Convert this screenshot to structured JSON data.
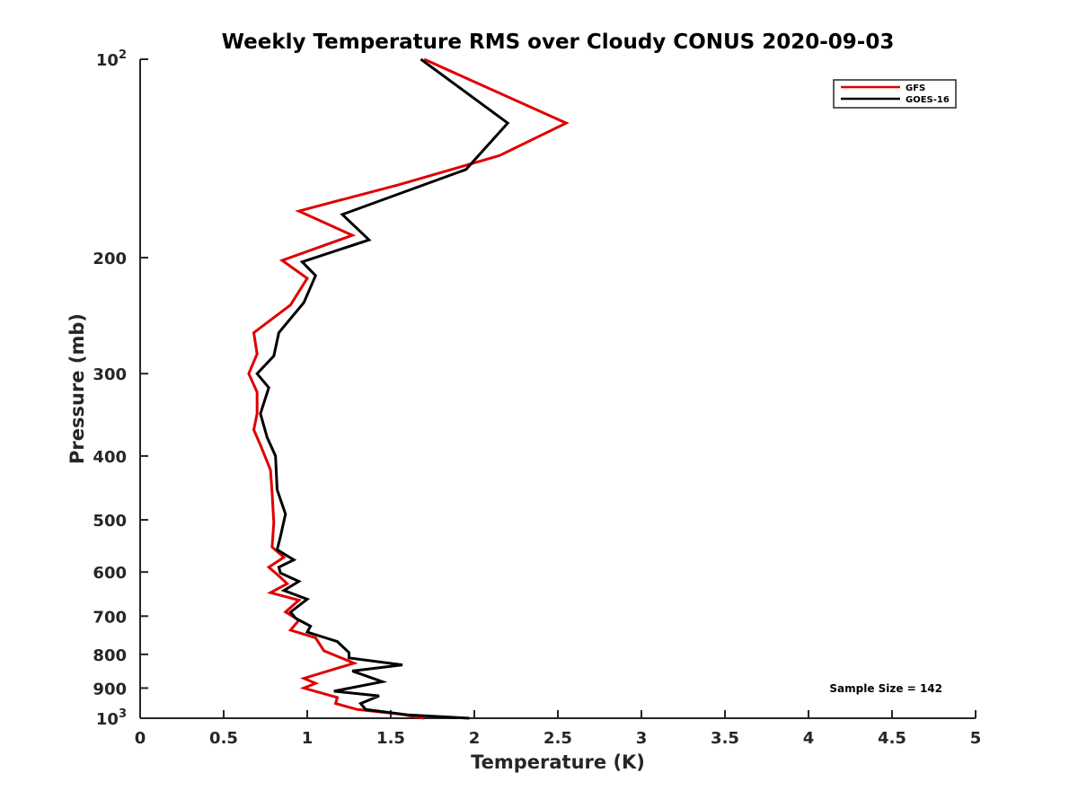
{
  "chart_data": {
    "type": "line",
    "title": "Weekly Temperature RMS over Cloudy CONUS 2020-09-03",
    "xlabel": "Temperature (K)",
    "ylabel": "Pressure (mb)",
    "xlim": [
      0,
      5
    ],
    "ylim": [
      100,
      1000
    ],
    "y_scale": "log",
    "y_reversed": true,
    "grid": false,
    "legend_position": "top-right",
    "x_ticks": [
      {
        "value": 0,
        "label": "0"
      },
      {
        "value": 0.5,
        "label": "0.5"
      },
      {
        "value": 1,
        "label": "1"
      },
      {
        "value": 1.5,
        "label": "1.5"
      },
      {
        "value": 2,
        "label": "2"
      },
      {
        "value": 2.5,
        "label": "2.5"
      },
      {
        "value": 3,
        "label": "3"
      },
      {
        "value": 3.5,
        "label": "3.5"
      },
      {
        "value": 4,
        "label": "4"
      },
      {
        "value": 4.5,
        "label": "4.5"
      },
      {
        "value": 5,
        "label": "5"
      }
    ],
    "y_ticks": [
      {
        "value": 100,
        "base": "10",
        "exp": "2"
      },
      {
        "value": 200,
        "label": "200"
      },
      {
        "value": 300,
        "label": "300"
      },
      {
        "value": 400,
        "label": "400"
      },
      {
        "value": 500,
        "label": "500"
      },
      {
        "value": 600,
        "label": "600"
      },
      {
        "value": 700,
        "label": "700"
      },
      {
        "value": 800,
        "label": "800"
      },
      {
        "value": 900,
        "label": "900"
      },
      {
        "value": 1000,
        "base": "10",
        "exp": "3"
      }
    ],
    "series": [
      {
        "name": "GFS",
        "color": "#e00000",
        "points": [
          [
            1.7,
            100
          ],
          [
            2.55,
            125
          ],
          [
            2.15,
            140
          ],
          [
            1.55,
            155
          ],
          [
            0.95,
            170
          ],
          [
            1.27,
            185
          ],
          [
            0.85,
            202
          ],
          [
            1.0,
            215
          ],
          [
            0.9,
            236
          ],
          [
            0.68,
            260
          ],
          [
            0.7,
            280
          ],
          [
            0.65,
            300
          ],
          [
            0.7,
            320
          ],
          [
            0.7,
            345
          ],
          [
            0.68,
            365
          ],
          [
            0.72,
            385
          ],
          [
            0.78,
            420
          ],
          [
            0.79,
            455
          ],
          [
            0.8,
            505
          ],
          [
            0.79,
            550
          ],
          [
            0.86,
            570
          ],
          [
            0.77,
            590
          ],
          [
            0.82,
            605
          ],
          [
            0.88,
            625
          ],
          [
            0.78,
            645
          ],
          [
            0.95,
            662
          ],
          [
            0.87,
            690
          ],
          [
            0.95,
            710
          ],
          [
            0.9,
            735
          ],
          [
            1.05,
            755
          ],
          [
            1.1,
            790
          ],
          [
            1.28,
            825
          ],
          [
            0.98,
            870
          ],
          [
            1.05,
            885
          ],
          [
            0.98,
            900
          ],
          [
            1.18,
            930
          ],
          [
            1.17,
            950
          ],
          [
            1.3,
            970
          ],
          [
            1.55,
            985
          ],
          [
            1.7,
            1000
          ]
        ]
      },
      {
        "name": "GOES-16",
        "color": "#000000",
        "points": [
          [
            1.68,
            100
          ],
          [
            2.2,
            125
          ],
          [
            1.95,
            147
          ],
          [
            1.21,
            172
          ],
          [
            1.37,
            188
          ],
          [
            0.97,
            203
          ],
          [
            1.05,
            213
          ],
          [
            0.98,
            234
          ],
          [
            0.83,
            260
          ],
          [
            0.8,
            282
          ],
          [
            0.7,
            300
          ],
          [
            0.77,
            315
          ],
          [
            0.72,
            345
          ],
          [
            0.76,
            375
          ],
          [
            0.81,
            400
          ],
          [
            0.82,
            450
          ],
          [
            0.87,
            490
          ],
          [
            0.84,
            530
          ],
          [
            0.82,
            555
          ],
          [
            0.92,
            575
          ],
          [
            0.83,
            590
          ],
          [
            0.84,
            602
          ],
          [
            0.95,
            620
          ],
          [
            0.86,
            640
          ],
          [
            1.0,
            660
          ],
          [
            0.9,
            690
          ],
          [
            0.93,
            705
          ],
          [
            1.02,
            725
          ],
          [
            1.0,
            740
          ],
          [
            1.18,
            765
          ],
          [
            1.25,
            795
          ],
          [
            1.25,
            810
          ],
          [
            1.57,
            830
          ],
          [
            1.27,
            848
          ],
          [
            1.45,
            880
          ],
          [
            1.16,
            910
          ],
          [
            1.43,
            925
          ],
          [
            1.32,
            950
          ],
          [
            1.35,
            970
          ],
          [
            1.6,
            988
          ],
          [
            1.97,
            1000
          ]
        ]
      }
    ],
    "annotations": [
      {
        "text": "Sample Size = 142"
      }
    ]
  }
}
